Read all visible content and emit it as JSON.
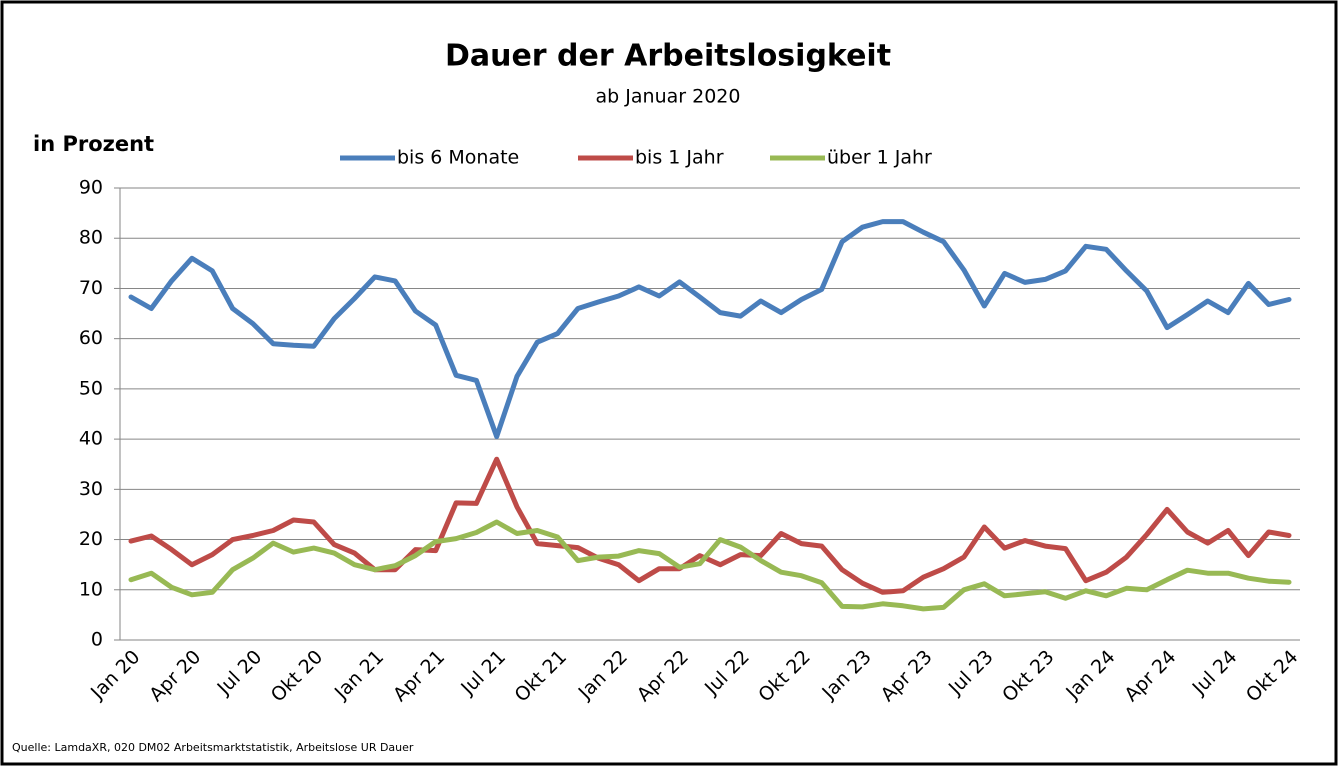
{
  "chart_data": {
    "type": "line",
    "title": "Dauer der Arbeitslosigkeit",
    "subtitle": "ab Januar 2020",
    "y_label": "in Prozent",
    "source": "Quelle: LamdaXR, 020 DM02 Arbeitsmarktstatistik, Arbeitslose UR Dauer",
    "categories": [
      "Jan 20",
      null,
      null,
      "Apr 20",
      null,
      null,
      "Jul 20",
      null,
      null,
      "Okt 20",
      null,
      null,
      "Jan 21",
      null,
      null,
      "Apr 21",
      null,
      null,
      "Jul 21",
      null,
      null,
      "Okt 21",
      null,
      null,
      "Jan 22",
      null,
      null,
      "Apr 22",
      null,
      null,
      "Jul 22",
      null,
      null,
      "Okt 22",
      null,
      null,
      "Jan 23",
      null,
      null,
      "Apr 23",
      null,
      null,
      "Jul 23",
      null,
      null,
      "Okt 23",
      null,
      null,
      "Jan 24",
      null,
      null,
      "Apr 24",
      null,
      null,
      "Jul 24",
      null,
      null,
      "Okt 24"
    ],
    "series": [
      {
        "name": "bis 6 Monate",
        "color": "#4a7ebb",
        "values": [
          68.3,
          66,
          71.5,
          76,
          73.5,
          66,
          63,
          59,
          58.7,
          58.5,
          64,
          68,
          72.3,
          71.5,
          65.5,
          62.7,
          52.7,
          51.7,
          40.5,
          52.5,
          59.3,
          61,
          66,
          67.3,
          68.5,
          70.3,
          68.5,
          71.3,
          68.3,
          65.2,
          64.5,
          67.5,
          65.2,
          67.8,
          69.8,
          79.3,
          82.2,
          83.3,
          83.3,
          81.2,
          79.3,
          73.7,
          66.5,
          73,
          71.2,
          71.8,
          73.5,
          78.4,
          77.8,
          73.5,
          69.5,
          62.2,
          64.8,
          67.5,
          65.2,
          71,
          66.8,
          67.8
        ]
      },
      {
        "name": "bis 1 Jahr",
        "color": "#be4b48",
        "values": [
          19.7,
          20.7,
          18,
          15,
          17,
          20,
          20.8,
          21.8,
          23.9,
          23.5,
          19,
          17.3,
          14,
          14,
          18,
          17.8,
          27.3,
          27.2,
          36,
          26.5,
          19.2,
          18.8,
          18.4,
          16.3,
          15,
          11.8,
          14.2,
          14.2,
          16.8,
          15,
          17,
          16.8,
          21.2,
          19.2,
          18.7,
          14,
          11.3,
          9.5,
          9.8,
          12.5,
          14.2,
          16.5,
          22.5,
          18.3,
          19.8,
          18.7,
          18.2,
          11.8,
          13.5,
          16.5,
          21,
          26,
          21.5,
          19.3,
          21.8,
          16.8,
          21.5,
          20.8
        ]
      },
      {
        "name": "über 1 Jahr",
        "color": "#98b954",
        "values": [
          12,
          13.3,
          10.5,
          9,
          9.5,
          14,
          16.3,
          19.3,
          17.5,
          18.3,
          17.3,
          15,
          14,
          14.8,
          16.8,
          19.6,
          20.2,
          21.4,
          23.5,
          21.2,
          21.8,
          20.5,
          15.8,
          16.5,
          16.7,
          17.8,
          17.2,
          14.5,
          15.2,
          20,
          18.5,
          15.8,
          13.5,
          12.8,
          11.4,
          6.7,
          6.6,
          7.2,
          6.8,
          6.2,
          6.5,
          10,
          11.2,
          8.8,
          9.2,
          9.6,
          8.3,
          9.8,
          8.8,
          10.3,
          10,
          12,
          13.9,
          13.3,
          13.3,
          12.3,
          11.7,
          11.5
        ]
      }
    ],
    "ylim": [
      0,
      90
    ],
    "yticks": [
      0,
      10,
      20,
      30,
      40,
      50,
      60,
      70,
      80,
      90
    ],
    "grid": true
  }
}
